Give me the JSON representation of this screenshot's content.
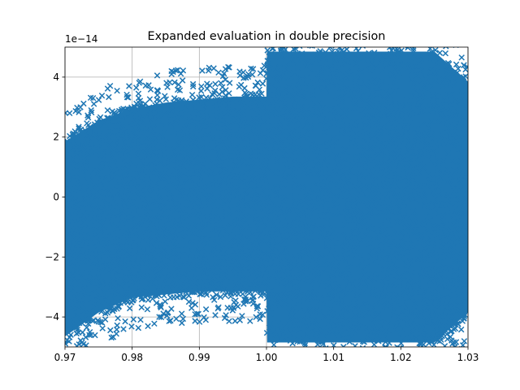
{
  "chart_data": {
    "type": "scatter",
    "title": "Expanded evaluation in double precision",
    "xlabel": "",
    "ylabel": "",
    "xlim": [
      0.97,
      1.03
    ],
    "ylim": [
      -5e-14,
      5e-14
    ],
    "y_offset_label": "1e−14",
    "x_ticks": [
      0.97,
      0.98,
      0.99,
      1.0,
      1.01,
      1.02,
      1.03
    ],
    "x_tick_labels": [
      "0.97",
      "0.98",
      "0.99",
      "1.00",
      "1.01",
      "1.02",
      "1.03"
    ],
    "y_ticks": [
      -4,
      -2,
      0,
      2,
      4
    ],
    "y_tick_labels": [
      "−4",
      "−2",
      "0",
      "2",
      "4"
    ],
    "grid": true,
    "marker": "x",
    "series": [
      {
        "name": "",
        "color": "#1f77b4",
        "description_values": {
          "x_range": [
            0.97,
            1.03
          ],
          "envelope_below_1": "|y| grows from ~2e-14 at x=0.97 to ~4e-14 near x=1.0",
          "envelope_above_1": "|y| up to ~5e-14 and beyond for x>1.0"
        },
        "envelope": {
          "x": [
            0.97,
            0.975,
            0.98,
            0.985,
            0.99,
            0.995,
            1.0,
            1.0001,
            1.005,
            1.01,
            1.015,
            1.02,
            1.025,
            1.03
          ],
          "upper": [
            2.0,
            2.7,
            3.1,
            3.3,
            3.4,
            3.5,
            3.5,
            5.0,
            5.0,
            5.0,
            5.0,
            5.0,
            5.0,
            4.0
          ],
          "lower": [
            -4.8,
            -4.0,
            -3.5,
            -3.4,
            -3.3,
            -3.3,
            -3.3,
            -5.0,
            -5.0,
            -5.0,
            -5.0,
            -5.0,
            -5.0,
            -4.0
          ]
        }
      }
    ]
  }
}
